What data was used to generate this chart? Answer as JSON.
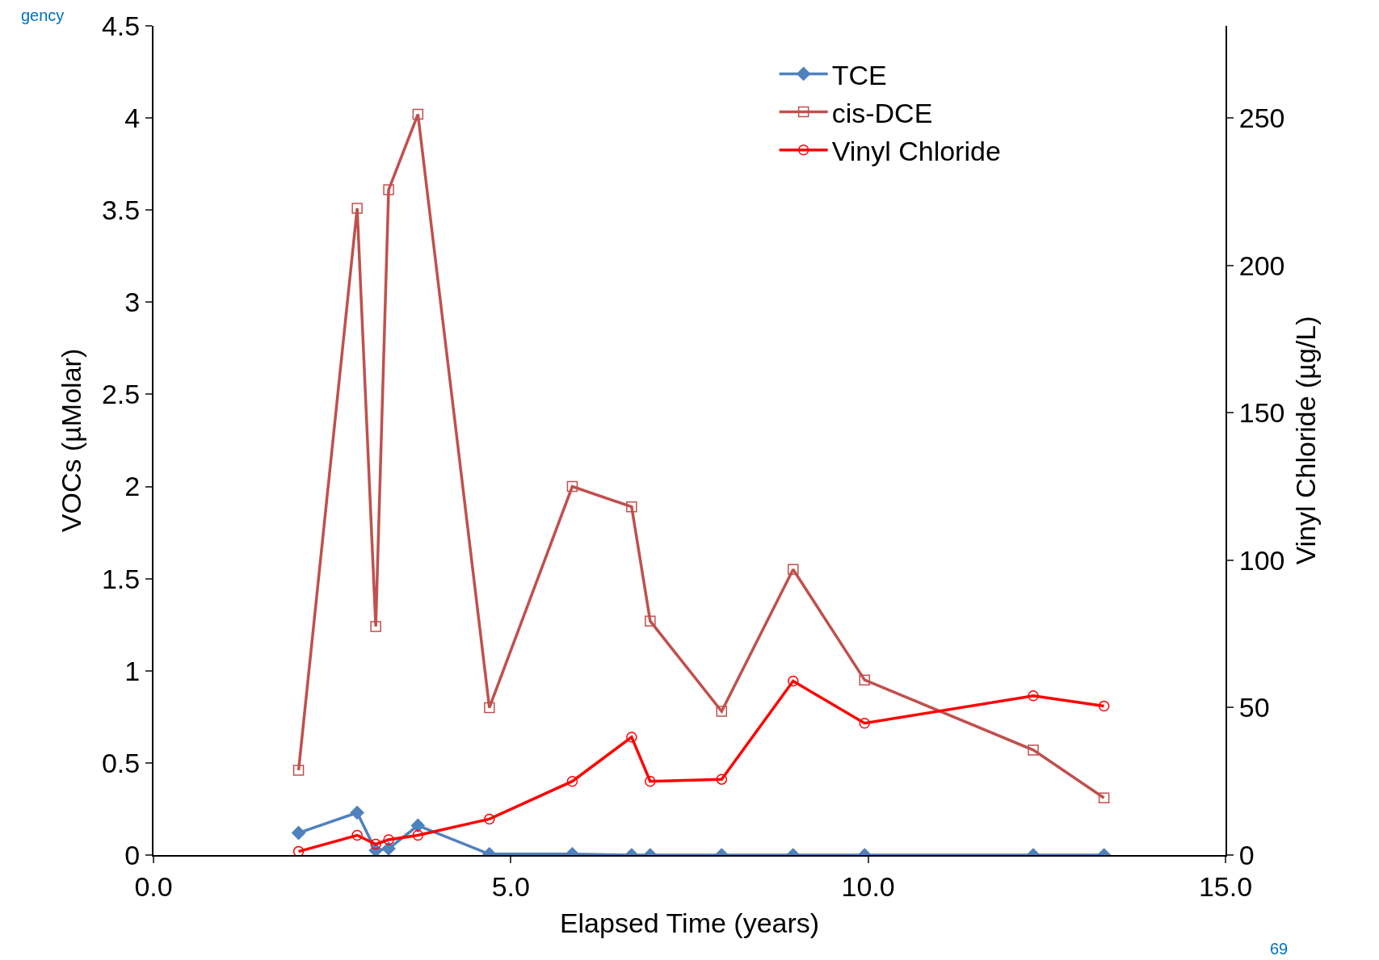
{
  "chart_data": {
    "type": "line",
    "xlabel": "Elapsed Time (years)",
    "ylabel": "VOCs (µMolar)",
    "y2label": "Vinyl Chloride (µg/L)",
    "annotations": [
      "gency",
      "69"
    ],
    "xlim": [
      0,
      15
    ],
    "xticks": [
      {
        "value": 0,
        "label": "0.0"
      },
      {
        "value": 5,
        "label": "5.0"
      },
      {
        "value": 10,
        "label": "10.0"
      },
      {
        "value": 15,
        "label": "15.0"
      }
    ],
    "ylim": [
      0,
      4.5
    ],
    "yticks": [
      0,
      0.5,
      1,
      1.5,
      2,
      2.5,
      3,
      3.5,
      4,
      4.5
    ],
    "y2lim": [
      0,
      281.25
    ],
    "y2ticks": [
      0,
      50,
      100,
      150,
      200,
      250
    ],
    "legend": "top right",
    "series": [
      {
        "name": "TCE",
        "color": "#4f81bd",
        "marker": "diamond",
        "x": [
          2.03,
          2.85,
          3.11,
          3.29,
          3.7,
          4.7,
          5.86,
          6.69,
          6.95,
          7.95,
          8.95,
          9.95,
          12.31,
          13.3
        ],
        "values": [
          0.12,
          0.23,
          0.025,
          0.035,
          0.16,
          0.005,
          0.005,
          0,
          0,
          0,
          0,
          0,
          0,
          0
        ]
      },
      {
        "name": "cis-DCE",
        "color": "#c0504d",
        "marker": "square",
        "x": [
          2.03,
          2.85,
          3.11,
          3.29,
          3.7,
          4.7,
          5.86,
          6.69,
          6.95,
          7.95,
          8.95,
          9.95,
          12.31,
          13.3
        ],
        "values": [
          0.46,
          3.51,
          1.24,
          3.61,
          4.02,
          0.8,
          2.0,
          1.89,
          1.27,
          0.78,
          1.55,
          0.95,
          0.57,
          0.31
        ]
      },
      {
        "name": "Vinyl Chloride",
        "color": "#ff0000",
        "marker": "circle",
        "axis": "y2",
        "x": [
          2.03,
          2.85,
          3.11,
          3.29,
          3.7,
          4.7,
          5.86,
          6.69,
          6.95,
          7.95,
          8.95,
          9.95,
          12.31,
          13.3
        ],
        "values": [
          1.2,
          6.7,
          3.7,
          5.2,
          6.7,
          12.2,
          25,
          40,
          25,
          25.7,
          59,
          44.7,
          54,
          50.5
        ]
      }
    ]
  }
}
